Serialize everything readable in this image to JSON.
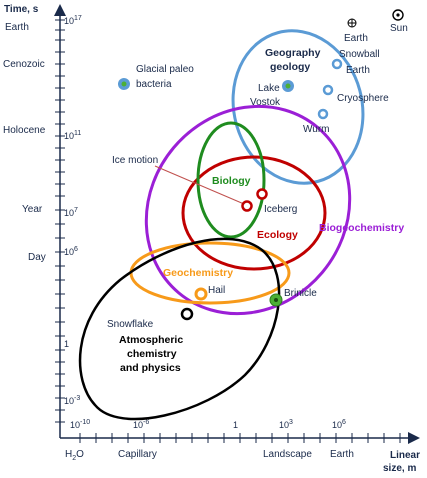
{
  "axes": {
    "y_title": "Time, s",
    "x_title_line1": "Linear",
    "x_title_line2": "size, m",
    "y_category_labels": [
      "Earth",
      "Cenozoic",
      "Holocene",
      "Year",
      "Day"
    ],
    "y_tick_labels": [
      "10^17",
      "10^11",
      "10^7",
      "10^6",
      "1",
      "10^-3"
    ],
    "x_tick_labels": [
      "10^-10",
      "10^-6",
      "1",
      "10^3",
      "10^6"
    ],
    "x_category_labels": [
      "H2O",
      "Capillary",
      "Landscape",
      "Earth"
    ]
  },
  "regions": {
    "geography_line1": "Geography",
    "geography_line2": "geology",
    "biology": "Biology",
    "ecology": "Ecology",
    "biogeochemistry": "Biogeochemistry",
    "geochemistry": "Geochemistry",
    "atmos_line1": "Atmospheric",
    "atmos_line2": "chemistry",
    "atmos_line3": "and physics"
  },
  "markers": {
    "earth": "Earth",
    "sun": "Sun",
    "snowball_line1": "Snowball",
    "snowball_line2": "Earth",
    "lake_line1": "Lake",
    "lake_line2": "Vostok",
    "cryosphere": "Cryosphere",
    "wurm": "Wurm",
    "glacial_line1": "Glacial paleo",
    "glacial_line2": "bacteria",
    "ice_motion": "Ice motion",
    "iceberg": "Iceberg",
    "hail": "Hail",
    "snowflake": "Snowflake",
    "brinicle": "Brinicle"
  },
  "colors": {
    "axis": "#1a2a4a",
    "geography": "#5b9bd5",
    "biology": "#1f8c1f",
    "ecology": "#c00000",
    "biogeochemistry": "#9b1fd6",
    "geochemistry": "#f79a1a",
    "atmospheric": "#000000",
    "marker_blue": "#5b9bd5",
    "marker_green": "#4caf35",
    "ice_motion_line": "#c0504d"
  }
}
